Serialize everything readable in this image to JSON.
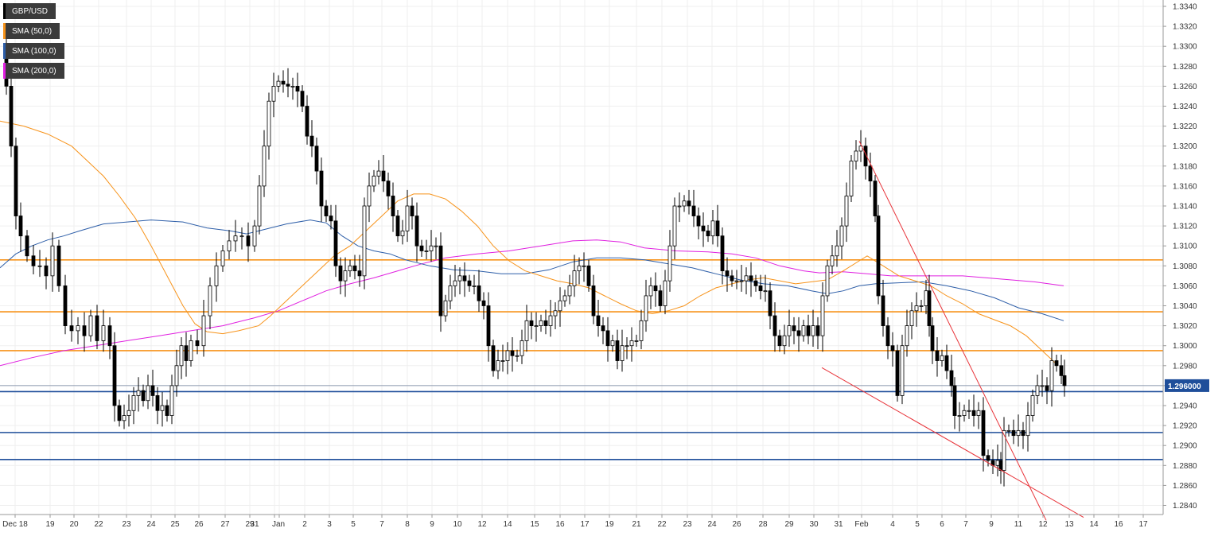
{
  "chart_data": {
    "type": "candlestick",
    "symbol": "GBP/USD",
    "current_price": "1.296000",
    "ylim": [
      1.283,
      1.3345
    ],
    "yticks": [
      "1.3340",
      "1.3320",
      "1.3300",
      "1.3280",
      "1.3260",
      "1.3240",
      "1.3220",
      "1.3200",
      "1.3180",
      "1.3160",
      "1.3140",
      "1.3120",
      "1.3100",
      "1.3080",
      "1.3060",
      "1.3040",
      "1.3020",
      "1.3000",
      "1.2980",
      "1.2960",
      "1.2940",
      "1.2920",
      "1.2900",
      "1.2880",
      "1.2860",
      "1.2840"
    ],
    "xticks": [
      "Dec 18",
      "19",
      "20",
      "22",
      "23",
      "24",
      "25",
      "26",
      "27",
      "29",
      "31",
      "Jan",
      "2",
      "3",
      "5",
      "7",
      "8",
      "9",
      "10",
      "12",
      "14",
      "15",
      "16",
      "17",
      "19",
      "21",
      "22",
      "23",
      "24",
      "26",
      "28",
      "29",
      "30",
      "31",
      "Feb",
      "4",
      "5",
      "6",
      "7",
      "9",
      "11",
      "12",
      "13",
      "14",
      "16",
      "17"
    ],
    "legend": [
      {
        "label": "GBP/USD",
        "color": "#000000"
      },
      {
        "label": "SMA (50,0)",
        "color": "#f7931a"
      },
      {
        "label": "SMA (100,0)",
        "color": "#2d5ea8"
      },
      {
        "label": "SMA (200,0)",
        "color": "#e020e0"
      }
    ],
    "horizontal_levels": [
      {
        "value": 1.3086,
        "color": "#f7931a"
      },
      {
        "value": 1.3034,
        "color": "#f7931a"
      },
      {
        "value": 1.2995,
        "color": "#f7931a"
      },
      {
        "value": 1.2954,
        "color": "#1f4e9a"
      },
      {
        "value": 1.2913,
        "color": "#1f4e9a"
      },
      {
        "value": 1.2886,
        "color": "#1f4e9a"
      }
    ],
    "trend_lines": [
      {
        "name": "channel-upper",
        "from": [
          1080,
          1.3205
        ],
        "to": [
          1315,
          1.2825
        ],
        "color": "#e8343a"
      },
      {
        "name": "channel-lower",
        "from": [
          1033,
          1.2978
        ],
        "to": [
          1362,
          1.2828
        ],
        "color": "#e8343a"
      }
    ],
    "price_path": [
      [
        2,
        1.33
      ],
      [
        8,
        1.326
      ],
      [
        14,
        1.32
      ],
      [
        20,
        1.313
      ],
      [
        26,
        1.311
      ],
      [
        34,
        1.309
      ],
      [
        42,
        1.308
      ],
      [
        50,
        1.308
      ],
      [
        58,
        1.307
      ],
      [
        66,
        1.31
      ],
      [
        74,
        1.306
      ],
      [
        82,
        1.302
      ],
      [
        90,
        1.3015
      ],
      [
        98,
        1.302
      ],
      [
        106,
        1.301
      ],
      [
        114,
        1.303
      ],
      [
        122,
        1.3005
      ],
      [
        130,
        1.302
      ],
      [
        138,
        1.3
      ],
      [
        144,
        1.294
      ],
      [
        150,
        1.2925
      ],
      [
        156,
        1.293
      ],
      [
        162,
        1.2935
      ],
      [
        168,
        1.295
      ],
      [
        174,
        1.2955
      ],
      [
        180,
        1.2945
      ],
      [
        186,
        1.296
      ],
      [
        192,
        1.295
      ],
      [
        198,
        1.2935
      ],
      [
        204,
        1.294
      ],
      [
        210,
        1.293
      ],
      [
        216,
        1.296
      ],
      [
        222,
        1.298
      ],
      [
        228,
        1.3
      ],
      [
        234,
        1.2985
      ],
      [
        240,
        1.3005
      ],
      [
        248,
        1.3
      ],
      [
        256,
        1.303
      ],
      [
        264,
        1.306
      ],
      [
        272,
        1.308
      ],
      [
        280,
        1.3095
      ],
      [
        288,
        1.3105
      ],
      [
        296,
        1.311
      ],
      [
        304,
        1.311
      ],
      [
        312,
        1.31
      ],
      [
        320,
        1.312
      ],
      [
        326,
        1.316
      ],
      [
        332,
        1.32
      ],
      [
        338,
        1.3245
      ],
      [
        344,
        1.326
      ],
      [
        350,
        1.3265
      ],
      [
        356,
        1.3262
      ],
      [
        362,
        1.326
      ],
      [
        368,
        1.326
      ],
      [
        374,
        1.3255
      ],
      [
        380,
        1.324
      ],
      [
        386,
        1.321
      ],
      [
        392,
        1.32
      ],
      [
        398,
        1.3175
      ],
      [
        404,
        1.314
      ],
      [
        410,
        1.313
      ],
      [
        416,
        1.3125
      ],
      [
        422,
        1.308
      ],
      [
        428,
        1.3065
      ],
      [
        434,
        1.3075
      ],
      [
        440,
        1.308
      ],
      [
        446,
        1.3075
      ],
      [
        452,
        1.307
      ],
      [
        458,
        1.314
      ],
      [
        464,
        1.316
      ],
      [
        470,
        1.317
      ],
      [
        476,
        1.3175
      ],
      [
        482,
        1.3165
      ],
      [
        488,
        1.315
      ],
      [
        494,
        1.313
      ],
      [
        500,
        1.311
      ],
      [
        506,
        1.3115
      ],
      [
        512,
        1.314
      ],
      [
        518,
        1.313
      ],
      [
        524,
        1.31
      ],
      [
        530,
        1.3095
      ],
      [
        536,
        1.3095
      ],
      [
        542,
        1.31
      ],
      [
        548,
        1.31
      ],
      [
        554,
        1.303
      ],
      [
        560,
        1.3045
      ],
      [
        566,
        1.306
      ],
      [
        572,
        1.3065
      ],
      [
        578,
        1.307
      ],
      [
        584,
        1.3065
      ],
      [
        590,
        1.306
      ],
      [
        596,
        1.306
      ],
      [
        602,
        1.3045
      ],
      [
        608,
        1.304
      ],
      [
        614,
        1.3
      ],
      [
        620,
        1.2975
      ],
      [
        626,
        1.2985
      ],
      [
        632,
        1.2985
      ],
      [
        638,
        1.2995
      ],
      [
        644,
        1.299
      ],
      [
        650,
        1.299
      ],
      [
        656,
        1.3005
      ],
      [
        662,
        1.3025
      ],
      [
        668,
        1.302
      ],
      [
        674,
        1.302
      ],
      [
        680,
        1.3025
      ],
      [
        686,
        1.302
      ],
      [
        692,
        1.303
      ],
      [
        698,
        1.3035
      ],
      [
        704,
        1.3045
      ],
      [
        710,
        1.305
      ],
      [
        716,
        1.306
      ],
      [
        722,
        1.3075
      ],
      [
        728,
        1.308
      ],
      [
        734,
        1.308
      ],
      [
        740,
        1.306
      ],
      [
        746,
        1.303
      ],
      [
        752,
        1.302
      ],
      [
        758,
        1.3015
      ],
      [
        764,
        1.3
      ],
      [
        770,
        1.3005
      ],
      [
        776,
        1.2985
      ],
      [
        782,
        1.3
      ],
      [
        788,
        1.3
      ],
      [
        794,
        1.3005
      ],
      [
        800,
        1.3005
      ],
      [
        806,
        1.3025
      ],
      [
        812,
        1.305
      ],
      [
        818,
        1.306
      ],
      [
        824,
        1.3055
      ],
      [
        830,
        1.304
      ],
      [
        836,
        1.3065
      ],
      [
        842,
        1.31
      ],
      [
        848,
        1.314
      ],
      [
        854,
        1.314
      ],
      [
        860,
        1.3145
      ],
      [
        866,
        1.314
      ],
      [
        872,
        1.313
      ],
      [
        878,
        1.312
      ],
      [
        884,
        1.3115
      ],
      [
        890,
        1.311
      ],
      [
        896,
        1.3125
      ],
      [
        902,
        1.311
      ],
      [
        908,
        1.3075
      ],
      [
        914,
        1.307
      ],
      [
        920,
        1.3065
      ],
      [
        926,
        1.3065
      ],
      [
        932,
        1.3065
      ],
      [
        938,
        1.307
      ],
      [
        944,
        1.3065
      ],
      [
        950,
        1.306
      ],
      [
        956,
        1.3055
      ],
      [
        962,
        1.3055
      ],
      [
        968,
        1.303
      ],
      [
        974,
        1.301
      ],
      [
        980,
        1.3
      ],
      [
        986,
        1.301
      ],
      [
        992,
        1.302
      ],
      [
        998,
        1.3015
      ],
      [
        1004,
        1.301
      ],
      [
        1010,
        1.302
      ],
      [
        1016,
        1.301
      ],
      [
        1022,
        1.302
      ],
      [
        1028,
        1.301
      ],
      [
        1034,
        1.305
      ],
      [
        1040,
        1.308
      ],
      [
        1046,
        1.309
      ],
      [
        1052,
        1.31
      ],
      [
        1058,
        1.312
      ],
      [
        1064,
        1.315
      ],
      [
        1070,
        1.3185
      ],
      [
        1076,
        1.3195
      ],
      [
        1082,
        1.32
      ],
      [
        1088,
        1.318
      ],
      [
        1094,
        1.3165
      ],
      [
        1100,
        1.313
      ],
      [
        1104,
        1.305
      ],
      [
        1110,
        1.302
      ],
      [
        1116,
        1.3
      ],
      [
        1122,
        1.2995
      ],
      [
        1128,
        1.295
      ],
      [
        1134,
        1.3
      ],
      [
        1140,
        1.302
      ],
      [
        1146,
        1.3035
      ],
      [
        1152,
        1.304
      ],
      [
        1158,
        1.304
      ],
      [
        1164,
        1.3055
      ],
      [
        1168,
        1.302
      ],
      [
        1172,
        1.2995
      ],
      [
        1178,
        1.2985
      ],
      [
        1184,
        1.299
      ],
      [
        1190,
        1.2975
      ],
      [
        1196,
        1.296
      ],
      [
        1200,
        1.293
      ],
      [
        1206,
        1.293
      ],
      [
        1212,
        1.2935
      ],
      [
        1218,
        1.2935
      ],
      [
        1224,
        1.293
      ],
      [
        1230,
        1.2935
      ],
      [
        1236,
        1.289
      ],
      [
        1242,
        1.2885
      ],
      [
        1248,
        1.288
      ],
      [
        1254,
        1.2885
      ],
      [
        1258,
        1.2875
      ],
      [
        1262,
        1.2915
      ],
      [
        1268,
        1.2915
      ],
      [
        1274,
        1.291
      ],
      [
        1280,
        1.2915
      ],
      [
        1286,
        1.291
      ],
      [
        1292,
        1.293
      ],
      [
        1298,
        1.295
      ],
      [
        1304,
        1.296
      ],
      [
        1310,
        1.296
      ],
      [
        1316,
        1.2955
      ],
      [
        1322,
        1.2985
      ],
      [
        1328,
        1.298
      ],
      [
        1334,
        1.297
      ],
      [
        1338,
        1.296
      ]
    ],
    "sma50_path": [
      [
        0,
        1.3225
      ],
      [
        30,
        1.322
      ],
      [
        60,
        1.3212
      ],
      [
        90,
        1.32
      ],
      [
        110,
        1.3185
      ],
      [
        130,
        1.317
      ],
      [
        150,
        1.315
      ],
      [
        170,
        1.3128
      ],
      [
        190,
        1.31
      ],
      [
        210,
        1.307
      ],
      [
        230,
        1.304
      ],
      [
        245,
        1.3022
      ],
      [
        260,
        1.3014
      ],
      [
        280,
        1.3012
      ],
      [
        300,
        1.3015
      ],
      [
        325,
        1.302
      ],
      [
        340,
        1.303
      ],
      [
        360,
        1.3045
      ],
      [
        380,
        1.306
      ],
      [
        400,
        1.3075
      ],
      [
        420,
        1.309
      ],
      [
        440,
        1.31
      ],
      [
        460,
        1.3115
      ],
      [
        480,
        1.313
      ],
      [
        500,
        1.3145
      ],
      [
        520,
        1.3152
      ],
      [
        540,
        1.3152
      ],
      [
        560,
        1.3147
      ],
      [
        580,
        1.3135
      ],
      [
        600,
        1.312
      ],
      [
        620,
        1.31
      ],
      [
        640,
        1.3085
      ],
      [
        660,
        1.3075
      ],
      [
        680,
        1.307
      ],
      [
        700,
        1.3065
      ],
      [
        720,
        1.3062
      ],
      [
        740,
        1.3058
      ],
      [
        760,
        1.305
      ],
      [
        780,
        1.3042
      ],
      [
        800,
        1.3035
      ],
      [
        820,
        1.3032
      ],
      [
        840,
        1.3035
      ],
      [
        860,
        1.304
      ],
      [
        880,
        1.305
      ],
      [
        900,
        1.3058
      ],
      [
        920,
        1.3062
      ],
      [
        940,
        1.3066
      ],
      [
        960,
        1.3068
      ],
      [
        980,
        1.3065
      ],
      [
        1000,
        1.3062
      ],
      [
        1020,
        1.3064
      ],
      [
        1040,
        1.3066
      ],
      [
        1060,
        1.3075
      ],
      [
        1080,
        1.3085
      ],
      [
        1090,
        1.309
      ],
      [
        1110,
        1.308
      ],
      [
        1130,
        1.307
      ],
      [
        1150,
        1.3065
      ],
      [
        1170,
        1.306
      ],
      [
        1190,
        1.305
      ],
      [
        1210,
        1.3042
      ],
      [
        1230,
        1.3032
      ],
      [
        1250,
        1.3026
      ],
      [
        1270,
        1.302
      ],
      [
        1290,
        1.301
      ],
      [
        1310,
        1.2995
      ],
      [
        1330,
        1.298
      ]
    ],
    "sma100_path": [
      [
        0,
        1.3078
      ],
      [
        20,
        1.3092
      ],
      [
        40,
        1.31
      ],
      [
        60,
        1.3106
      ],
      [
        80,
        1.311
      ],
      [
        100,
        1.3115
      ],
      [
        130,
        1.3122
      ],
      [
        160,
        1.3124
      ],
      [
        190,
        1.3126
      ],
      [
        230,
        1.3124
      ],
      [
        260,
        1.3118
      ],
      [
        290,
        1.3115
      ],
      [
        310,
        1.3112
      ],
      [
        330,
        1.3116
      ],
      [
        360,
        1.3122
      ],
      [
        390,
        1.3126
      ],
      [
        410,
        1.3123
      ],
      [
        430,
        1.311
      ],
      [
        450,
        1.31
      ],
      [
        470,
        1.3095
      ],
      [
        490,
        1.3092
      ],
      [
        510,
        1.3086
      ],
      [
        540,
        1.308
      ],
      [
        570,
        1.3076
      ],
      [
        600,
        1.3075
      ],
      [
        630,
        1.3072
      ],
      [
        660,
        1.3072
      ],
      [
        690,
        1.3076
      ],
      [
        720,
        1.3084
      ],
      [
        750,
        1.3088
      ],
      [
        780,
        1.3088
      ],
      [
        810,
        1.3086
      ],
      [
        840,
        1.3082
      ],
      [
        870,
        1.3078
      ],
      [
        900,
        1.3072
      ],
      [
        930,
        1.3066
      ],
      [
        960,
        1.3062
      ],
      [
        990,
        1.306
      ],
      [
        1020,
        1.3055
      ],
      [
        1040,
        1.3052
      ],
      [
        1060,
        1.3055
      ],
      [
        1080,
        1.306
      ],
      [
        1100,
        1.3062
      ],
      [
        1130,
        1.3063
      ],
      [
        1160,
        1.3064
      ],
      [
        1190,
        1.306
      ],
      [
        1220,
        1.3055
      ],
      [
        1250,
        1.3048
      ],
      [
        1280,
        1.3038
      ],
      [
        1310,
        1.3032
      ],
      [
        1337,
        1.3025
      ]
    ],
    "sma200_path": [
      [
        0,
        1.298
      ],
      [
        40,
        1.2988
      ],
      [
        80,
        1.2995
      ],
      [
        120,
        1.3
      ],
      [
        160,
        1.3005
      ],
      [
        200,
        1.301
      ],
      [
        240,
        1.3015
      ],
      [
        280,
        1.302
      ],
      [
        320,
        1.3028
      ],
      [
        350,
        1.3035
      ],
      [
        380,
        1.3045
      ],
      [
        410,
        1.3055
      ],
      [
        440,
        1.3062
      ],
      [
        470,
        1.3068
      ],
      [
        500,
        1.3075
      ],
      [
        530,
        1.3082
      ],
      [
        560,
        1.3088
      ],
      [
        600,
        1.3092
      ],
      [
        640,
        1.3095
      ],
      [
        680,
        1.31
      ],
      [
        720,
        1.3105
      ],
      [
        750,
        1.3106
      ],
      [
        780,
        1.3104
      ],
      [
        810,
        1.3098
      ],
      [
        850,
        1.3095
      ],
      [
        890,
        1.3094
      ],
      [
        920,
        1.3092
      ],
      [
        950,
        1.3088
      ],
      [
        980,
        1.308
      ],
      [
        1010,
        1.3075
      ],
      [
        1030,
        1.3073
      ],
      [
        1060,
        1.3074
      ],
      [
        1090,
        1.3072
      ],
      [
        1120,
        1.307
      ],
      [
        1150,
        1.307
      ],
      [
        1180,
        1.307
      ],
      [
        1210,
        1.307
      ],
      [
        1240,
        1.3068
      ],
      [
        1270,
        1.3066
      ],
      [
        1300,
        1.3064
      ],
      [
        1337,
        1.306
      ]
    ]
  }
}
